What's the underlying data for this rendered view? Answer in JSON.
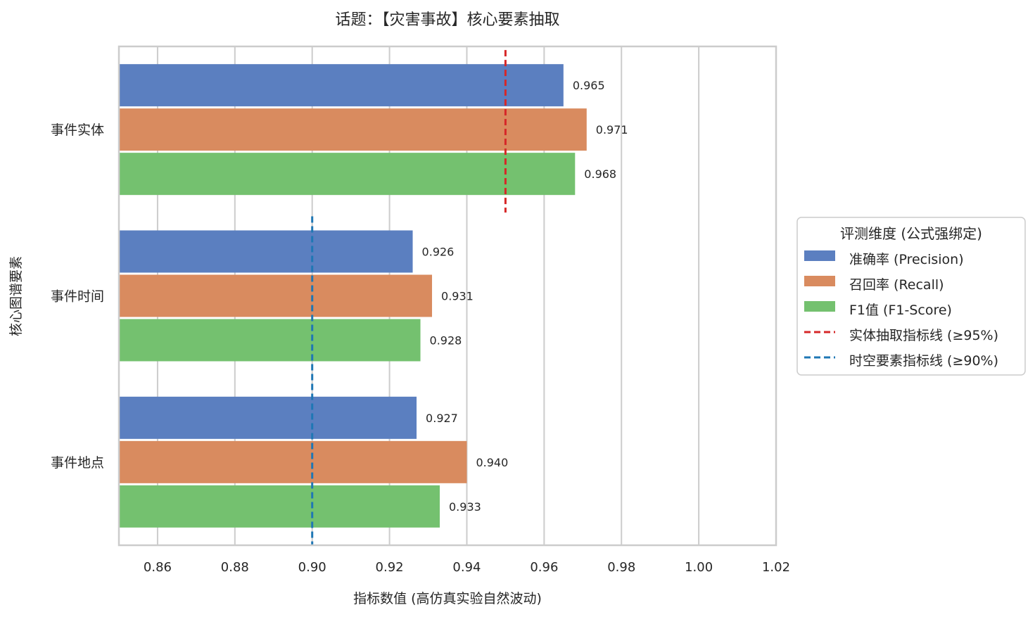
{
  "chart_data": {
    "type": "bar",
    "orientation": "horizontal",
    "title": "话题：【灾害事故】核心要素抽取",
    "xlabel": "指标数值 (高仿真实验自然波动)",
    "ylabel": "核心图谱要素",
    "xlim": [
      0.85,
      1.02
    ],
    "xticks": [
      "0.86",
      "0.88",
      "0.90",
      "0.92",
      "0.94",
      "0.96",
      "0.98",
      "1.00",
      "1.02"
    ],
    "grid": "vertical",
    "categories": [
      "事件实体",
      "事件时间",
      "事件地点"
    ],
    "series": [
      {
        "name": "准确率 (Precision)",
        "color": "#5b7fc0",
        "values": [
          0.965,
          0.926,
          0.927
        ],
        "labels": [
          "0.965",
          "0.926",
          "0.927"
        ]
      },
      {
        "name": "召回率 (Recall)",
        "color": "#d98b5f",
        "values": [
          0.971,
          0.931,
          0.94
        ],
        "labels": [
          "0.971",
          "0.931",
          "0.940"
        ]
      },
      {
        "name": "F1值 (F1-Score)",
        "color": "#74c16f",
        "values": [
          0.968,
          0.928,
          0.933
        ],
        "labels": [
          "0.968",
          "0.928",
          "0.933"
        ]
      }
    ],
    "reference_lines": [
      {
        "name": "实体抽取指标线 (≥95%)",
        "value": 0.95,
        "color": "#d62728",
        "applies_to": [
          "事件实体"
        ]
      },
      {
        "name": "时空要素指标线 (≥90%)",
        "value": 0.9,
        "color": "#1f77b4",
        "applies_to": [
          "事件时间",
          "事件地点"
        ]
      }
    ],
    "legend": {
      "title": "评测维度 (公式强绑定)",
      "position": "right-center"
    }
  }
}
